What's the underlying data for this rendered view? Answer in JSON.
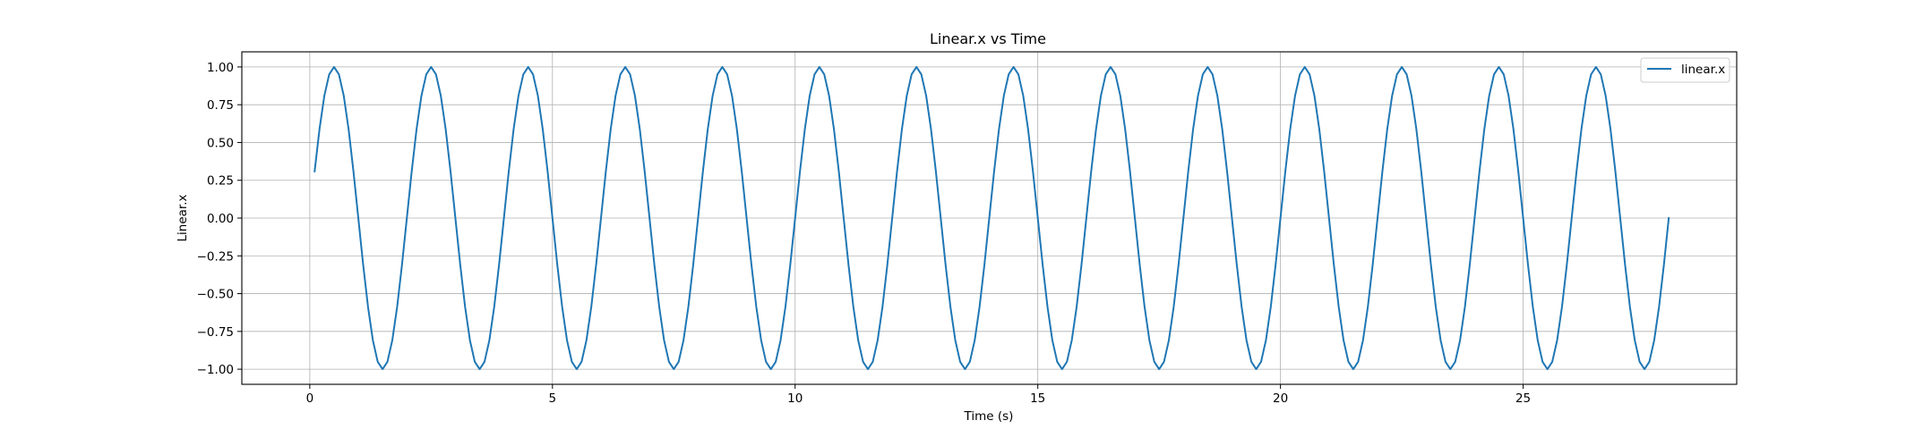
{
  "chart_data": {
    "type": "line",
    "title": "Linear.x vs Time",
    "xlabel": "Time (s)",
    "ylabel": "Linear.x",
    "xlim": [
      -1.4,
      29.4
    ],
    "ylim": [
      -1.1,
      1.1
    ],
    "xticks": [
      0,
      5,
      10,
      15,
      20,
      25
    ],
    "xtick_labels": [
      "0",
      "5",
      "10",
      "15",
      "20",
      "25"
    ],
    "yticks": [
      1.0,
      0.75,
      0.5,
      0.25,
      0.0,
      -0.25,
      -0.5,
      -0.75,
      -1.0
    ],
    "ytick_labels": [
      "1.00",
      "0.75",
      "0.50",
      "0.25",
      "0.00",
      "−0.25",
      "−0.50",
      "−0.75",
      "−1.00"
    ],
    "grid": true,
    "legend_position": "top-right",
    "series": [
      {
        "name": "linear.x",
        "color": "#1f77b4",
        "function": "sin(pi * t)",
        "x_start": 0.1,
        "x_end": 28.0,
        "x_step": 0.1,
        "y_first": 0.31,
        "y_last": 0.0,
        "period": 2.0,
        "amplitude": 1.0,
        "peaks_x": [
          0.5,
          2.5,
          4.5,
          6.5,
          8.5,
          10.5,
          12.5,
          14.5,
          16.5,
          18.5,
          20.5,
          22.5,
          24.5,
          26.5
        ],
        "troughs_x": [
          1.5,
          3.5,
          5.5,
          7.5,
          9.5,
          11.5,
          13.5,
          15.5,
          17.5,
          19.5,
          21.5,
          23.5,
          25.5,
          27.5
        ]
      }
    ]
  }
}
